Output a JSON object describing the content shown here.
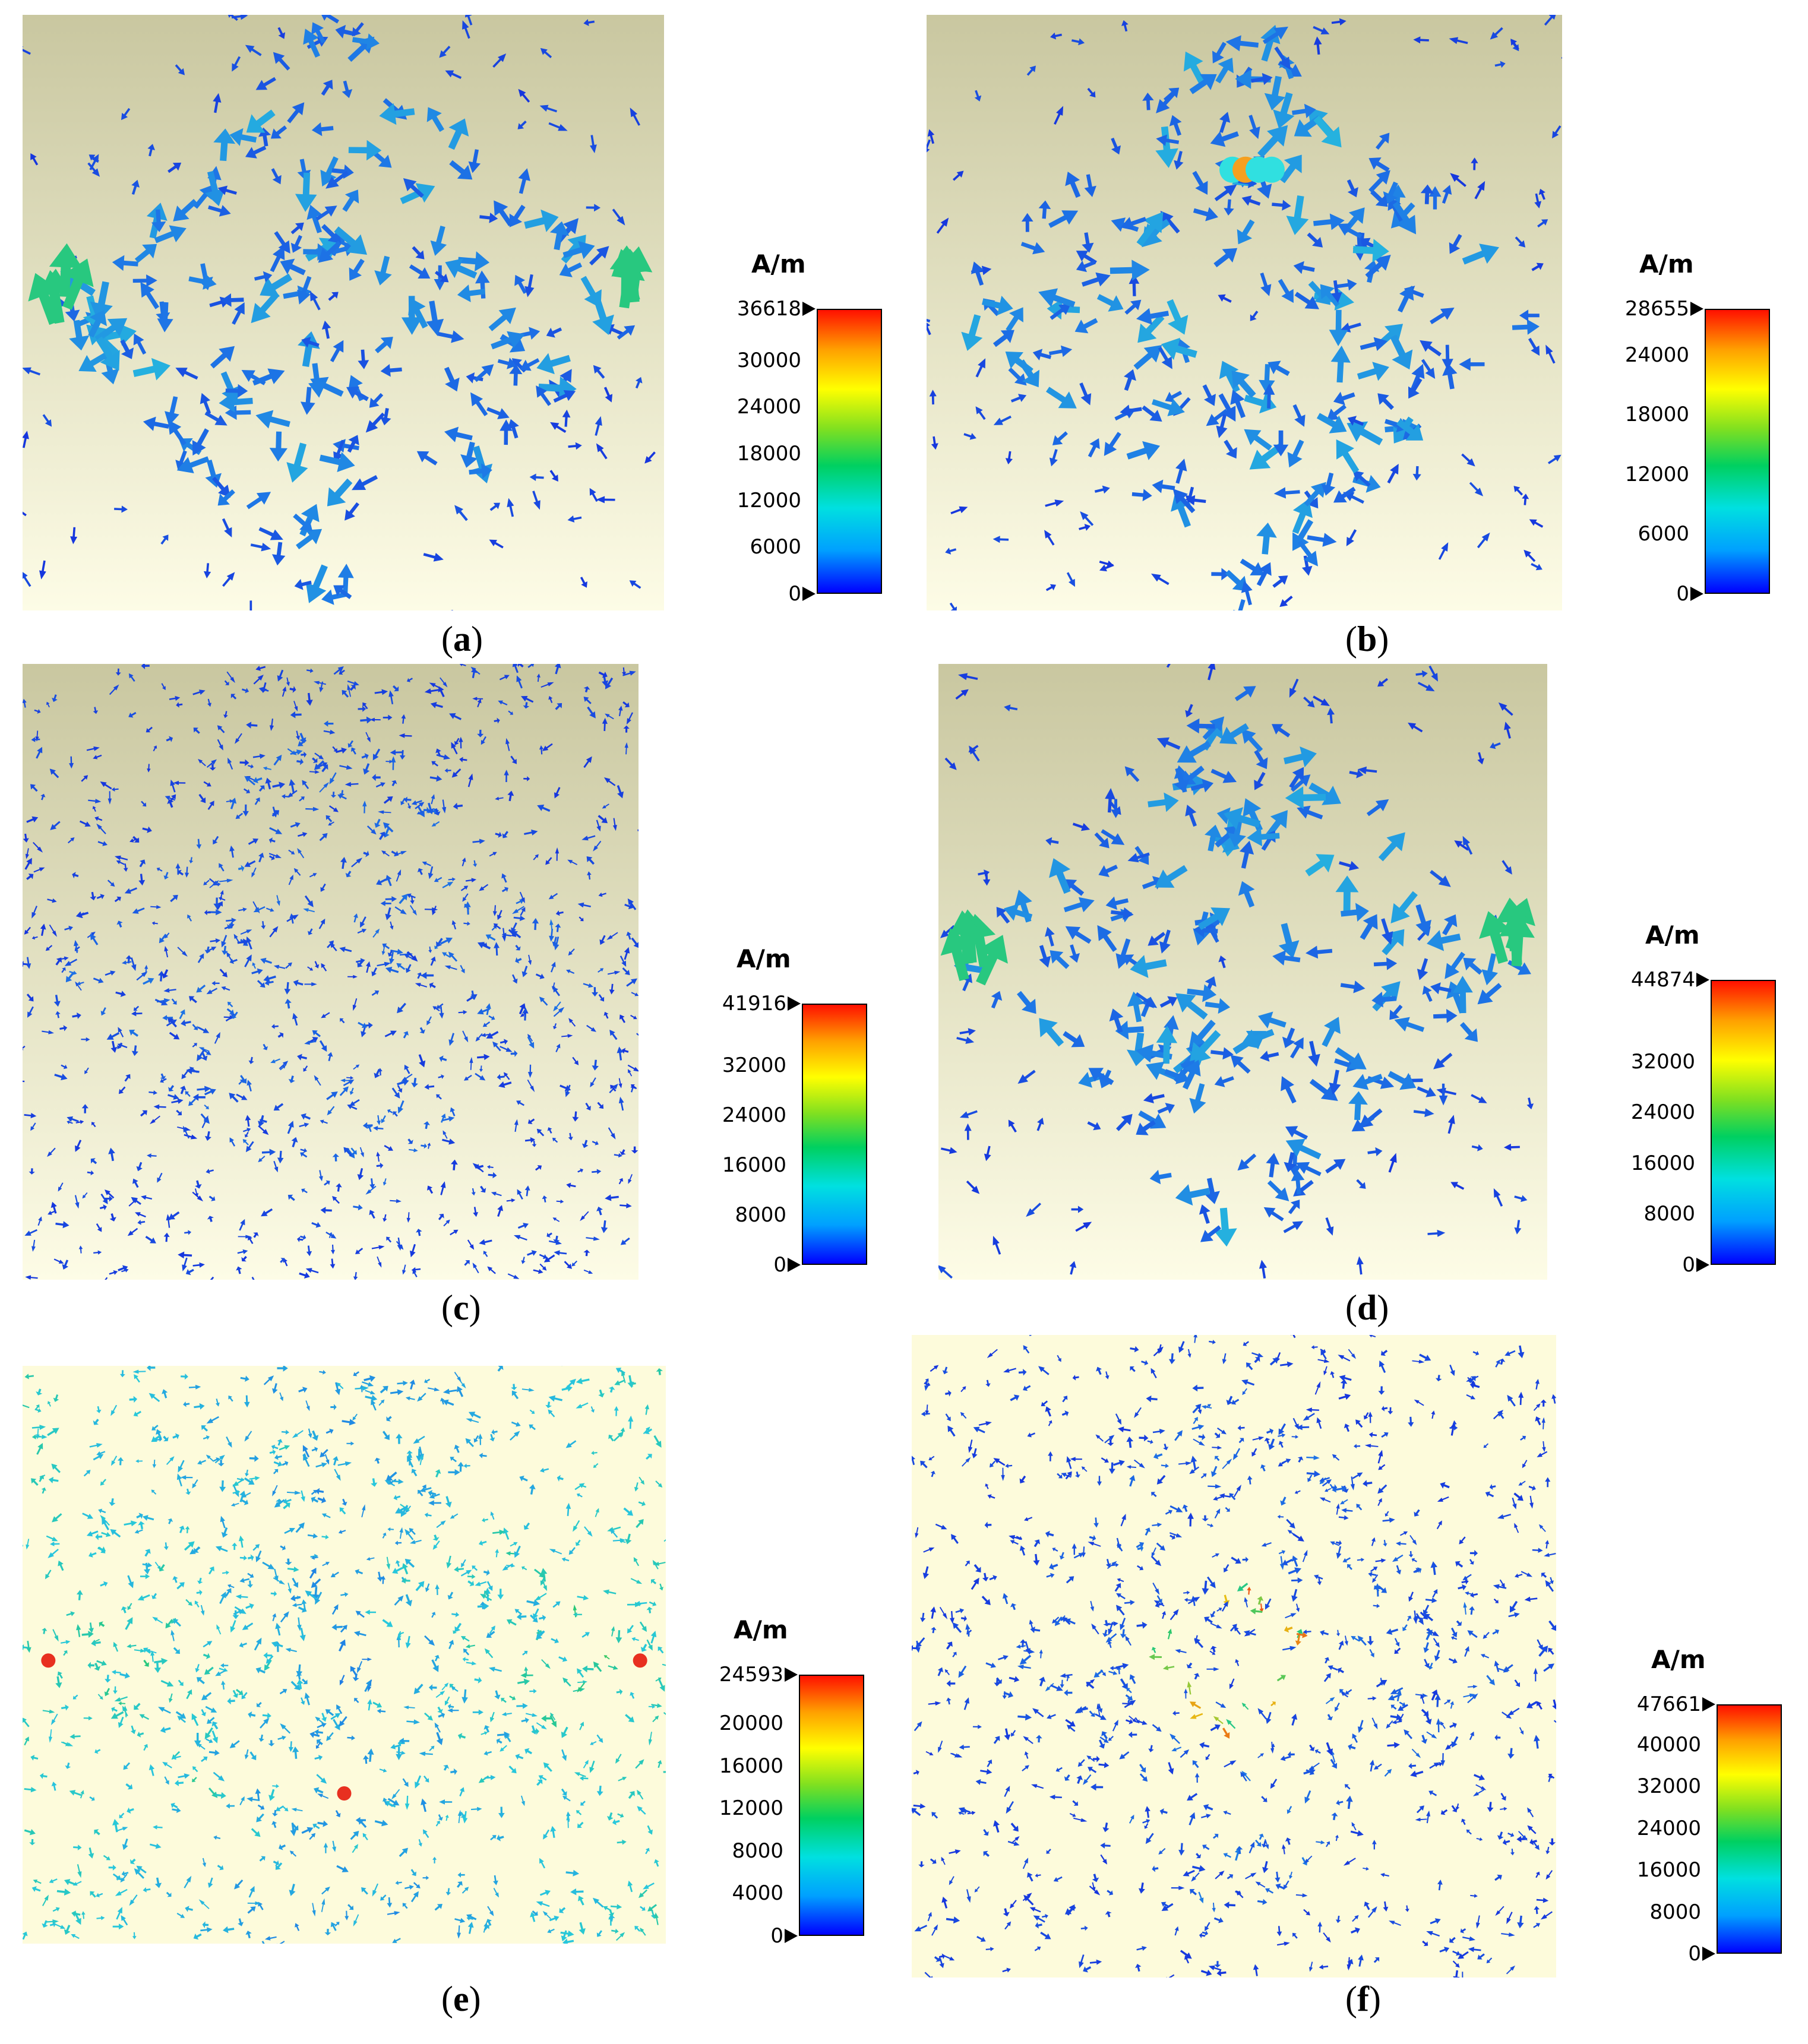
{
  "colors": {
    "bg_top_a": "#c9c7a0",
    "bg_bottom": "#fdfce6",
    "bg_flat": "#fdfbdb",
    "arrow_low": "#1a3fd0",
    "arrow_mid": "#2ab8d8",
    "arrow_high": "#28c050"
  },
  "panels": [
    {
      "id": "a",
      "caption": "a",
      "unit": "A/m",
      "ticks": [
        "36618",
        "30000",
        "24000",
        "18000",
        "12000",
        "6000",
        "0"
      ],
      "style": "blob"
    },
    {
      "id": "b",
      "caption": "b",
      "unit": "A/m",
      "ticks": [
        "28655",
        "24000",
        "18000",
        "12000",
        "6000",
        "0"
      ],
      "style": "blob"
    },
    {
      "id": "c",
      "caption": "c",
      "unit": "A/m",
      "ticks": [
        "41916",
        "32000",
        "24000",
        "16000",
        "8000",
        "0"
      ],
      "style": "fine"
    },
    {
      "id": "d",
      "caption": "d",
      "unit": "A/m",
      "ticks": [
        "44874",
        "32000",
        "24000",
        "16000",
        "8000",
        "0"
      ],
      "style": "blob"
    },
    {
      "id": "e",
      "caption": "e",
      "unit": "A/m",
      "ticks": [
        "24593",
        "20000",
        "16000",
        "12000",
        "8000",
        "4000",
        "0"
      ],
      "style": "fine"
    },
    {
      "id": "f",
      "caption": "f",
      "unit": "A/m",
      "ticks": [
        "47661",
        "40000",
        "32000",
        "24000",
        "16000",
        "8000",
        "0"
      ],
      "style": "fine"
    }
  ]
}
